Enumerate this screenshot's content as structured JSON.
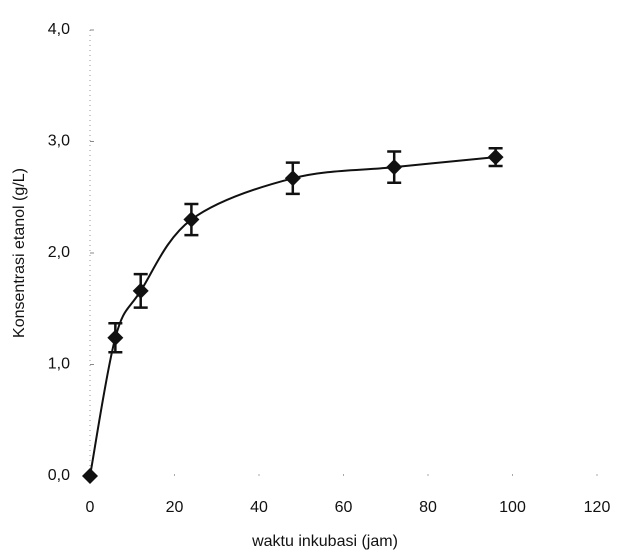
{
  "chart_data": {
    "type": "line",
    "xlabel": "waktu inkubasi (jam)",
    "ylabel": "Konsentrasi etanol (g/L)",
    "x": [
      0,
      6,
      12,
      24,
      48,
      72,
      96
    ],
    "series": [
      {
        "color": "#111111",
        "values": [
          0,
          1.24,
          1.66,
          2.3,
          2.67,
          2.77,
          2.86
        ],
        "errors": [
          0,
          0.13,
          0.15,
          0.14,
          0.14,
          0.14,
          0.08
        ]
      }
    ],
    "xlim": [
      0,
      120
    ],
    "xticks": [
      0,
      20,
      40,
      60,
      80,
      100,
      120
    ],
    "ylim": [
      0,
      4
    ],
    "yticks": [
      {
        "value": 0,
        "label": "0,0"
      },
      {
        "value": 1,
        "label": "1,0"
      },
      {
        "value": 2,
        "label": "2,0"
      },
      {
        "value": 3,
        "label": "3,0"
      },
      {
        "value": 4,
        "label": "4,0"
      }
    ]
  }
}
